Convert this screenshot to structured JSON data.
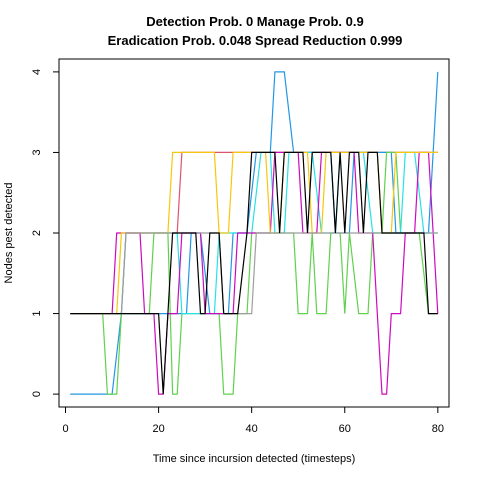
{
  "chart_data": {
    "type": "line",
    "title": "Detection Prob. 0 Manage Prob. 0.9",
    "subtitle": "Eradication Prob. 0.048 Spread Reduction 0.999",
    "xlabel": "Time since incursion detected (timesteps)",
    "ylabel": "Nodes pest detected",
    "xlim": [
      -1.4,
      82.4
    ],
    "ylim": [
      -0.16,
      4.16
    ],
    "x_ticks": [
      0,
      20,
      40,
      60,
      80
    ],
    "y_ticks": [
      0,
      1,
      2,
      3,
      4
    ],
    "grid": false,
    "series": [
      {
        "color": "#DF536B",
        "points": [
          [
            1,
            1
          ],
          [
            12,
            1
          ],
          [
            13,
            2
          ],
          [
            24,
            2
          ],
          [
            25,
            3
          ],
          [
            80,
            3
          ]
        ]
      },
      {
        "color": "#2297E6",
        "points": [
          [
            1,
            0
          ],
          [
            10,
            0
          ],
          [
            12,
            1
          ],
          [
            26,
            1
          ],
          [
            27,
            2
          ],
          [
            29,
            2
          ],
          [
            31,
            1
          ],
          [
            35,
            1
          ],
          [
            36,
            2
          ],
          [
            39,
            2
          ],
          [
            41,
            3
          ],
          [
            44,
            3
          ],
          [
            45,
            4
          ],
          [
            47,
            4
          ],
          [
            49,
            3
          ],
          [
            57,
            3
          ],
          [
            58,
            2
          ],
          [
            61,
            2
          ],
          [
            62,
            3
          ],
          [
            70,
            3
          ],
          [
            71,
            2
          ],
          [
            78,
            2
          ],
          [
            80,
            4
          ]
        ]
      },
      {
        "color": "#61D04F",
        "points": [
          [
            1,
            1
          ],
          [
            8,
            1
          ],
          [
            9,
            0
          ],
          [
            11,
            0
          ],
          [
            12,
            1
          ],
          [
            18,
            1
          ],
          [
            19,
            2
          ],
          [
            22,
            2
          ],
          [
            23,
            0
          ],
          [
            24,
            0
          ],
          [
            25,
            1
          ],
          [
            29,
            1
          ],
          [
            30,
            1
          ],
          [
            33,
            1
          ],
          [
            34,
            0
          ],
          [
            36,
            0
          ],
          [
            37,
            1
          ],
          [
            39,
            1
          ],
          [
            40,
            2
          ],
          [
            49,
            2
          ],
          [
            50,
            1
          ],
          [
            52,
            1
          ],
          [
            53,
            2
          ],
          [
            54,
            1
          ],
          [
            56,
            1
          ],
          [
            57,
            2
          ],
          [
            59,
            2
          ],
          [
            60,
            1
          ],
          [
            61,
            2
          ],
          [
            63,
            1
          ],
          [
            65,
            1
          ],
          [
            66,
            2
          ],
          [
            68,
            2
          ],
          [
            69,
            3
          ],
          [
            71,
            3
          ],
          [
            72,
            2
          ],
          [
            76,
            2
          ],
          [
            78,
            1
          ],
          [
            80,
            1
          ]
        ]
      },
      {
        "color": "#28E2E5",
        "points": [
          [
            1,
            1
          ],
          [
            12,
            1
          ],
          [
            13,
            2
          ],
          [
            24,
            2
          ],
          [
            25,
            1
          ],
          [
            32,
            1
          ],
          [
            33,
            2
          ],
          [
            40,
            2
          ],
          [
            42,
            3
          ],
          [
            44,
            3
          ],
          [
            45,
            2
          ],
          [
            47,
            2
          ],
          [
            48,
            3
          ],
          [
            53,
            3
          ],
          [
            55,
            2
          ],
          [
            58,
            2
          ],
          [
            59,
            3
          ],
          [
            64,
            3
          ],
          [
            66,
            2
          ],
          [
            72,
            2
          ],
          [
            73,
            3
          ],
          [
            75,
            3
          ],
          [
            77,
            2
          ],
          [
            80,
            2
          ]
        ]
      },
      {
        "color": "#CD0BBC",
        "points": [
          [
            1,
            1
          ],
          [
            10,
            1
          ],
          [
            11,
            2
          ],
          [
            16,
            2
          ],
          [
            17,
            1
          ],
          [
            19,
            1
          ],
          [
            20,
            0
          ],
          [
            21,
            0
          ],
          [
            22,
            1
          ],
          [
            24,
            1
          ],
          [
            25,
            2
          ],
          [
            29,
            2
          ],
          [
            30,
            1
          ],
          [
            36,
            1
          ],
          [
            37,
            2
          ],
          [
            44,
            2
          ],
          [
            45,
            3
          ],
          [
            50,
            3
          ],
          [
            51,
            2
          ],
          [
            54,
            2
          ],
          [
            55,
            3
          ],
          [
            62,
            3
          ],
          [
            63,
            2
          ],
          [
            66,
            2
          ],
          [
            67,
            1
          ],
          [
            68,
            0
          ],
          [
            69,
            0
          ],
          [
            70,
            1
          ],
          [
            72,
            1
          ],
          [
            73,
            2
          ],
          [
            75,
            2
          ],
          [
            76,
            3
          ],
          [
            78,
            3
          ],
          [
            80,
            1
          ]
        ]
      },
      {
        "color": "#F5C710",
        "points": [
          [
            1,
            1
          ],
          [
            11,
            1
          ],
          [
            12,
            2
          ],
          [
            22,
            2
          ],
          [
            23,
            3
          ],
          [
            32,
            3
          ],
          [
            33,
            2
          ],
          [
            35,
            2
          ],
          [
            36,
            3
          ],
          [
            43,
            3
          ],
          [
            44,
            2
          ],
          [
            46,
            2
          ],
          [
            47,
            3
          ],
          [
            52,
            3
          ],
          [
            53,
            2
          ],
          [
            55,
            2
          ],
          [
            56,
            3
          ],
          [
            67,
            3
          ],
          [
            68,
            2
          ],
          [
            70,
            2
          ],
          [
            71,
            3
          ],
          [
            80,
            3
          ]
        ]
      },
      {
        "color": "#9E9E9E",
        "points": [
          [
            1,
            1
          ],
          [
            12,
            1
          ],
          [
            13,
            2
          ],
          [
            33,
            2
          ],
          [
            34,
            1
          ],
          [
            40,
            1
          ],
          [
            41,
            2
          ],
          [
            80,
            2
          ]
        ]
      },
      {
        "color": "#000000",
        "points": [
          [
            1,
            1
          ],
          [
            13,
            1
          ],
          [
            14,
            1
          ],
          [
            20,
            1
          ],
          [
            21,
            0
          ],
          [
            22,
            1
          ],
          [
            23,
            2
          ],
          [
            28,
            2
          ],
          [
            29,
            1
          ],
          [
            30,
            1
          ],
          [
            31,
            2
          ],
          [
            33,
            2
          ],
          [
            34,
            1
          ],
          [
            37,
            1
          ],
          [
            39,
            2
          ],
          [
            40,
            3
          ],
          [
            45,
            3
          ],
          [
            46,
            2
          ],
          [
            47,
            3
          ],
          [
            51,
            3
          ],
          [
            52,
            2
          ],
          [
            53,
            3
          ],
          [
            57,
            3
          ],
          [
            58,
            2
          ],
          [
            59,
            3
          ],
          [
            60,
            2
          ],
          [
            61,
            3
          ],
          [
            63,
            3
          ],
          [
            64,
            2
          ],
          [
            65,
            3
          ],
          [
            67,
            3
          ],
          [
            68,
            2
          ],
          [
            77,
            2
          ],
          [
            78,
            1
          ],
          [
            80,
            1
          ]
        ]
      }
    ]
  }
}
